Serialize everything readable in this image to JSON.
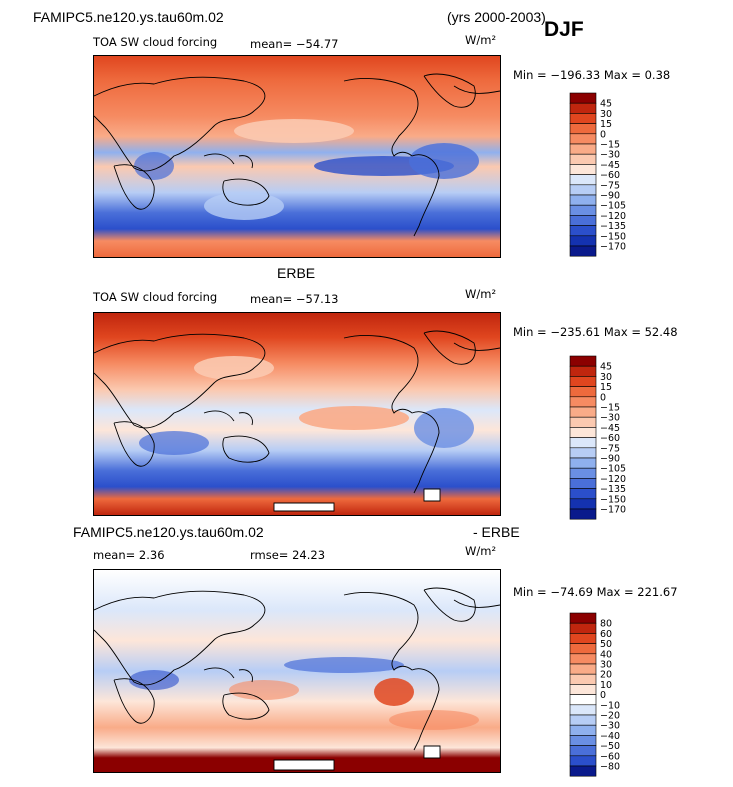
{
  "header": {
    "model_title": "FAMIPC5.ne120.ys.tau60m.02",
    "years": "(yrs 2000-2003)",
    "season": "DJF"
  },
  "panels": [
    {
      "id": "model",
      "variable": "TOA SW cloud forcing",
      "mean_text": "mean= −54.77",
      "units": "W/m²",
      "minmax_text": "Min = −196.33 Max =   0.38",
      "colorbar": {
        "labels": [
          "45",
          "30",
          "15",
          "0",
          "−15",
          "−30",
          "−45",
          "−60",
          "−75",
          "−90",
          "−105",
          "−120",
          "−135",
          "−150",
          "−170"
        ],
        "colors": [
          "#8b0000",
          "#c0260e",
          "#e0461f",
          "#ee6a3d",
          "#f68b62",
          "#f9ab88",
          "#fbc9b0",
          "#fde6d9",
          "#dbe7fa",
          "#b7cdf5",
          "#8fb0ee",
          "#6a8fe4",
          "#4a6fd9",
          "#2b4fcb",
          "#1432b0",
          "#0a1a8c"
        ]
      }
    },
    {
      "id": "obs",
      "obs_title": "ERBE",
      "variable": "TOA SW cloud forcing",
      "mean_text": "mean= −57.13",
      "units": "W/m²",
      "minmax_text": "Min = −235.61 Max =  52.48",
      "colorbar": {
        "labels": [
          "45",
          "30",
          "15",
          "0",
          "−15",
          "−30",
          "−45",
          "−60",
          "−75",
          "−90",
          "−105",
          "−120",
          "−135",
          "−150",
          "−170"
        ],
        "colors": [
          "#8b0000",
          "#c0260e",
          "#e0461f",
          "#ee6a3d",
          "#f68b62",
          "#f9ab88",
          "#fbc9b0",
          "#fde6d9",
          "#dbe7fa",
          "#b7cdf5",
          "#8fb0ee",
          "#6a8fe4",
          "#4a6fd9",
          "#2b4fcb",
          "#1432b0",
          "#0a1a8c"
        ]
      }
    },
    {
      "id": "diff",
      "diff_left": "FAMIPC5.ne120.ys.tau60m.02",
      "diff_right": "- ERBE",
      "mean_text": "mean=    2.36",
      "rmse_text": "rmse=   24.23",
      "units": "W/m²",
      "minmax_text": "Min = −74.69 Max = 221.67",
      "colorbar": {
        "labels": [
          "80",
          "60",
          "50",
          "40",
          "30",
          "20",
          "10",
          "0",
          "−10",
          "−20",
          "−30",
          "−40",
          "−50",
          "−60",
          "−80"
        ],
        "colors": [
          "#8b0000",
          "#c0260e",
          "#e0461f",
          "#ee6a3d",
          "#f68b62",
          "#f9ab88",
          "#fbc9b0",
          "#fde6d9",
          "#ffffff",
          "#dbe7fa",
          "#b7cdf5",
          "#8fb0ee",
          "#6a8fe4",
          "#4a6fd9",
          "#2b4fcb",
          "#0a1a8c"
        ]
      }
    }
  ]
}
